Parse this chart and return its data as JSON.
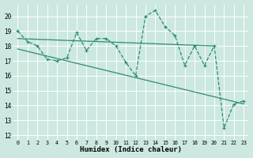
{
  "xlabel": "Humidex (Indice chaleur)",
  "bg_color": "#cce8e0",
  "grid_color": "#ffffff",
  "line_color": "#2d8b78",
  "xlim": [
    -0.5,
    23.5
  ],
  "ylim": [
    11.7,
    20.8
  ],
  "yticks": [
    12,
    13,
    14,
    15,
    16,
    17,
    18,
    19,
    20
  ],
  "xticks": [
    0,
    1,
    2,
    3,
    4,
    5,
    6,
    7,
    8,
    9,
    10,
    11,
    12,
    13,
    14,
    15,
    16,
    17,
    18,
    19,
    20,
    21,
    22,
    23
  ],
  "zigzag_x": [
    0,
    1,
    2,
    3,
    4,
    5,
    6,
    7,
    8,
    9,
    10,
    11,
    12,
    13,
    14,
    15,
    16,
    17,
    18,
    19,
    20,
    21,
    22,
    23
  ],
  "zigzag_y": [
    19.0,
    18.3,
    18.0,
    17.1,
    17.0,
    17.2,
    18.9,
    17.7,
    18.5,
    18.5,
    18.0,
    16.9,
    16.0,
    20.0,
    20.4,
    19.3,
    18.7,
    16.7,
    18.0,
    16.7,
    18.0,
    12.5,
    14.1,
    14.3
  ],
  "trend1_x": [
    0,
    20
  ],
  "trend1_y": [
    18.5,
    18.0
  ],
  "trend2_x": [
    0,
    23
  ],
  "trend2_y": [
    17.8,
    14.1
  ]
}
